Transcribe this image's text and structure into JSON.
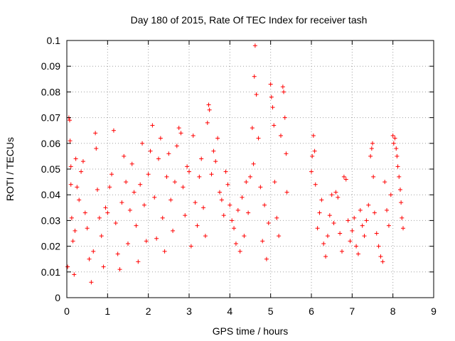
{
  "chart_data": {
    "type": "scatter",
    "title": "Day 180 of 2015, Rate Of TEC Index for receiver tash",
    "xlabel": "GPS time / hours",
    "ylabel": "ROTI / TECUs",
    "xlim": [
      0,
      9
    ],
    "ylim": [
      0,
      0.1
    ],
    "x_ticks": [
      "0",
      "1",
      "2",
      "3",
      "4",
      "5",
      "6",
      "7",
      "8",
      "9"
    ],
    "y_ticks": [
      "0",
      "0.01",
      "0.02",
      "0.03",
      "0.04",
      "0.05",
      "0.06",
      "0.07",
      "0.08",
      "0.09",
      "0.1"
    ],
    "grid": true,
    "marker": "+",
    "series": [
      {
        "name": "ROTI",
        "color": "#ff0000",
        "points": [
          [
            0.02,
            0.012
          ],
          [
            0.05,
            0.07
          ],
          [
            0.07,
            0.069
          ],
          [
            0.08,
            0.061
          ],
          [
            0.1,
            0.044
          ],
          [
            0.1,
            0.051
          ],
          [
            0.12,
            0.031
          ],
          [
            0.15,
            0.022
          ],
          [
            0.18,
            0.009
          ],
          [
            0.2,
            0.026
          ],
          [
            0.22,
            0.054
          ],
          [
            0.25,
            0.043
          ],
          [
            0.3,
            0.038
          ],
          [
            0.35,
            0.049
          ],
          [
            0.4,
            0.053
          ],
          [
            0.45,
            0.033
          ],
          [
            0.5,
            0.027
          ],
          [
            0.55,
            0.015
          ],
          [
            0.6,
            0.006
          ],
          [
            0.65,
            0.018
          ],
          [
            0.7,
            0.064
          ],
          [
            0.72,
            0.058
          ],
          [
            0.75,
            0.042
          ],
          [
            0.8,
            0.031
          ],
          [
            0.85,
            0.024
          ],
          [
            0.9,
            0.012
          ],
          [
            0.95,
            0.035
          ],
          [
            1.0,
            0.033
          ],
          [
            1.05,
            0.043
          ],
          [
            1.1,
            0.048
          ],
          [
            1.15,
            0.065
          ],
          [
            1.2,
            0.029
          ],
          [
            1.25,
            0.017
          ],
          [
            1.3,
            0.011
          ],
          [
            1.35,
            0.037
          ],
          [
            1.4,
            0.055
          ],
          [
            1.45,
            0.045
          ],
          [
            1.5,
            0.021
          ],
          [
            1.55,
            0.034
          ],
          [
            1.6,
            0.052
          ],
          [
            1.65,
            0.041
          ],
          [
            1.7,
            0.028
          ],
          [
            1.75,
            0.014
          ],
          [
            1.8,
            0.044
          ],
          [
            1.85,
            0.06
          ],
          [
            1.9,
            0.036
          ],
          [
            1.95,
            0.022
          ],
          [
            2.0,
            0.048
          ],
          [
            2.05,
            0.057
          ],
          [
            2.1,
            0.067
          ],
          [
            2.15,
            0.039
          ],
          [
            2.2,
            0.023
          ],
          [
            2.25,
            0.054
          ],
          [
            2.3,
            0.062
          ],
          [
            2.35,
            0.031
          ],
          [
            2.4,
            0.018
          ],
          [
            2.45,
            0.047
          ],
          [
            2.5,
            0.056
          ],
          [
            2.55,
            0.038
          ],
          [
            2.6,
            0.026
          ],
          [
            2.65,
            0.045
          ],
          [
            2.7,
            0.059
          ],
          [
            2.75,
            0.066
          ],
          [
            2.8,
            0.064
          ],
          [
            2.85,
            0.043
          ],
          [
            2.9,
            0.032
          ],
          [
            2.95,
            0.051
          ],
          [
            3.0,
            0.049
          ],
          [
            3.05,
            0.02
          ],
          [
            3.1,
            0.063
          ],
          [
            3.15,
            0.037
          ],
          [
            3.2,
            0.028
          ],
          [
            3.25,
            0.047
          ],
          [
            3.3,
            0.054
          ],
          [
            3.35,
            0.035
          ],
          [
            3.4,
            0.024
          ],
          [
            3.45,
            0.068
          ],
          [
            3.48,
            0.075
          ],
          [
            3.5,
            0.073
          ],
          [
            3.55,
            0.048
          ],
          [
            3.6,
            0.057
          ],
          [
            3.65,
            0.053
          ],
          [
            3.7,
            0.062
          ],
          [
            3.75,
            0.041
          ],
          [
            3.8,
            0.038
          ],
          [
            3.85,
            0.032
          ],
          [
            3.9,
            0.049
          ],
          [
            3.95,
            0.044
          ],
          [
            4.0,
            0.036
          ],
          [
            4.05,
            0.03
          ],
          [
            4.1,
            0.027
          ],
          [
            4.15,
            0.021
          ],
          [
            4.2,
            0.034
          ],
          [
            4.25,
            0.018
          ],
          [
            4.3,
            0.039
          ],
          [
            4.35,
            0.024
          ],
          [
            4.4,
            0.045
          ],
          [
            4.45,
            0.033
          ],
          [
            4.5,
            0.047
          ],
          [
            4.55,
            0.066
          ],
          [
            4.58,
            0.052
          ],
          [
            4.6,
            0.086
          ],
          [
            4.62,
            0.098
          ],
          [
            4.65,
            0.079
          ],
          [
            4.7,
            0.062
          ],
          [
            4.75,
            0.043
          ],
          [
            4.8,
            0.022
          ],
          [
            4.85,
            0.036
          ],
          [
            4.9,
            0.015
          ],
          [
            4.95,
            0.029
          ],
          [
            5.0,
            0.083
          ],
          [
            5.02,
            0.078
          ],
          [
            5.05,
            0.074
          ],
          [
            5.08,
            0.067
          ],
          [
            5.1,
            0.045
          ],
          [
            5.15,
            0.031
          ],
          [
            5.2,
            0.024
          ],
          [
            5.25,
            0.063
          ],
          [
            5.3,
            0.082
          ],
          [
            5.32,
            0.08
          ],
          [
            5.35,
            0.07
          ],
          [
            5.38,
            0.056
          ],
          [
            5.4,
            0.041
          ],
          [
            6.0,
            0.049
          ],
          [
            6.02,
            0.055
          ],
          [
            6.05,
            0.063
          ],
          [
            6.08,
            0.057
          ],
          [
            6.1,
            0.044
          ],
          [
            6.15,
            0.027
          ],
          [
            6.2,
            0.033
          ],
          [
            6.25,
            0.038
          ],
          [
            6.3,
            0.021
          ],
          [
            6.35,
            0.016
          ],
          [
            6.4,
            0.024
          ],
          [
            6.45,
            0.032
          ],
          [
            6.5,
            0.04
          ],
          [
            6.55,
            0.029
          ],
          [
            6.6,
            0.041
          ],
          [
            6.65,
            0.039
          ],
          [
            6.7,
            0.025
          ],
          [
            6.75,
            0.018
          ],
          [
            6.8,
            0.047
          ],
          [
            6.85,
            0.046
          ],
          [
            6.9,
            0.03
          ],
          [
            6.95,
            0.022
          ],
          [
            7.0,
            0.026
          ],
          [
            7.05,
            0.031
          ],
          [
            7.1,
            0.02
          ],
          [
            7.15,
            0.017
          ],
          [
            7.2,
            0.034
          ],
          [
            7.25,
            0.028
          ],
          [
            7.3,
            0.024
          ],
          [
            7.35,
            0.03
          ],
          [
            7.4,
            0.036
          ],
          [
            7.45,
            0.055
          ],
          [
            7.48,
            0.058
          ],
          [
            7.5,
            0.06
          ],
          [
            7.52,
            0.047
          ],
          [
            7.55,
            0.033
          ],
          [
            7.6,
            0.025
          ],
          [
            7.65,
            0.02
          ],
          [
            7.7,
            0.016
          ],
          [
            7.75,
            0.014
          ],
          [
            7.8,
            0.045
          ],
          [
            7.85,
            0.034
          ],
          [
            7.9,
            0.028
          ],
          [
            7.95,
            0.04
          ],
          [
            8.0,
            0.063
          ],
          [
            8.02,
            0.06
          ],
          [
            8.05,
            0.062
          ],
          [
            8.08,
            0.058
          ],
          [
            8.1,
            0.055
          ],
          [
            8.12,
            0.051
          ],
          [
            8.15,
            0.047
          ],
          [
            8.18,
            0.042
          ],
          [
            8.2,
            0.037
          ],
          [
            8.22,
            0.031
          ],
          [
            8.25,
            0.027
          ]
        ]
      }
    ]
  }
}
